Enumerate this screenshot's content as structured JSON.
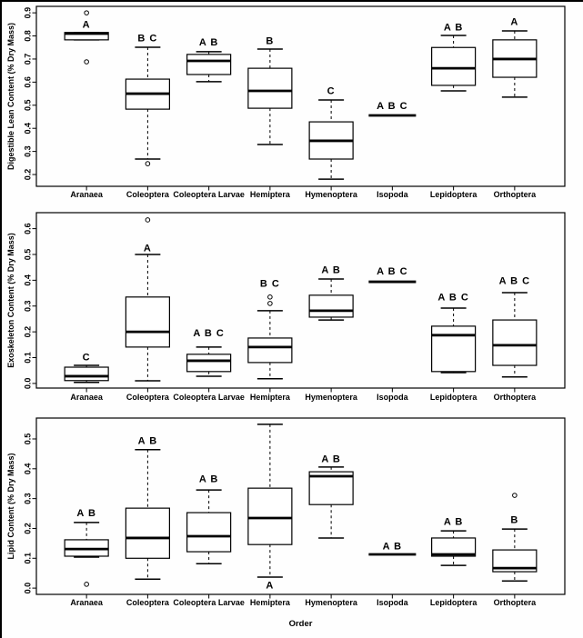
{
  "figure": {
    "title": "",
    "frame_color": "#000000",
    "background": "#fefefe",
    "line_color": "#000000",
    "box_fill": "#ffffff"
  },
  "chart_data": {
    "type": "boxplot",
    "categories": [
      "Aranaea",
      "Coleoptera",
      "Coleoptera Larvae",
      "Hemiptera",
      "Hymenoptera",
      "Isopoda",
      "Lepidoptera",
      "Orthoptera"
    ],
    "xlabel": "Order",
    "panels": [
      {
        "name": "digestible-lean",
        "ylabel": "Digestible Lean Content (% Dry Mass)",
        "ylim": [
          0.149,
          0.928
        ],
        "yticks": [
          0.2,
          0.3,
          0.4,
          0.5,
          0.6,
          0.7,
          0.8,
          0.9
        ],
        "boxes": [
          {
            "category": "Aranaea",
            "sig": "A",
            "sig_y": 0.85,
            "q1": 0.783,
            "median": 0.81,
            "q3": 0.815,
            "wlo": 0.783,
            "whi": 0.815,
            "outliers": [
              0.9,
              0.688
            ]
          },
          {
            "category": "Coleoptera",
            "sig": "B C",
            "sig_y": 0.79,
            "q1": 0.483,
            "median": 0.55,
            "q3": 0.613,
            "wlo": 0.267,
            "whi": 0.751,
            "outliers": [
              0.247
            ]
          },
          {
            "category": "Coleoptera Larvae",
            "sig": "A B",
            "sig_y": 0.772,
            "q1": 0.633,
            "median": 0.692,
            "q3": 0.72,
            "wlo": 0.602,
            "whi": 0.732,
            "outliers": []
          },
          {
            "category": "Hemiptera",
            "sig": "B",
            "sig_y": 0.779,
            "q1": 0.487,
            "median": 0.562,
            "q3": 0.66,
            "wlo": 0.33,
            "whi": 0.743,
            "outliers": []
          },
          {
            "category": "Hymenoptera",
            "sig": "C",
            "sig_y": 0.562,
            "q1": 0.267,
            "median": 0.346,
            "q3": 0.428,
            "wlo": 0.18,
            "whi": 0.523,
            "outliers": []
          },
          {
            "category": "Isopoda",
            "sig": "A B C",
            "sig_y": 0.497,
            "flat": 0.456
          },
          {
            "category": "Lepidoptera",
            "sig": "A B",
            "sig_y": 0.838,
            "q1": 0.586,
            "median": 0.66,
            "q3": 0.75,
            "wlo": 0.562,
            "whi": 0.802,
            "outliers": []
          },
          {
            "category": "Orthoptera",
            "sig": "A",
            "sig_y": 0.861,
            "q1": 0.621,
            "median": 0.7,
            "q3": 0.783,
            "wlo": 0.535,
            "whi": 0.822,
            "outliers": []
          }
        ]
      },
      {
        "name": "exoskeleton",
        "ylabel": "Exoskeleton Content (% Dry Mass)",
        "ylim": [
          -0.018,
          0.662
        ],
        "yticks": [
          0.0,
          0.1,
          0.2,
          0.3,
          0.4,
          0.5,
          0.6
        ],
        "boxes": [
          {
            "category": "Aranaea",
            "sig": "C",
            "sig_y": 0.102,
            "q1": 0.011,
            "median": 0.028,
            "q3": 0.063,
            "wlo": 0.004,
            "whi": 0.07,
            "outliers": []
          },
          {
            "category": "Coleoptera",
            "sig": "A",
            "sig_y": 0.525,
            "q1": 0.141,
            "median": 0.2,
            "q3": 0.335,
            "wlo": 0.01,
            "whi": 0.5,
            "outliers": [
              0.634
            ]
          },
          {
            "category": "Coleoptera Larvae",
            "sig": "A B C",
            "sig_y": 0.196,
            "q1": 0.046,
            "median": 0.088,
            "q3": 0.113,
            "wlo": 0.028,
            "whi": 0.141,
            "outliers": []
          },
          {
            "category": "Hemiptera",
            "sig": "B C",
            "sig_y": 0.387,
            "q1": 0.081,
            "median": 0.141,
            "q3": 0.176,
            "wlo": 0.018,
            "whi": 0.282,
            "outliers": [
              0.31,
              0.335
            ]
          },
          {
            "category": "Hymenoptera",
            "sig": "A B",
            "sig_y": 0.44,
            "q1": 0.257,
            "median": 0.282,
            "q3": 0.342,
            "wlo": 0.246,
            "whi": 0.405,
            "outliers": []
          },
          {
            "category": "Isopoda",
            "sig": "A B C",
            "sig_y": 0.435,
            "flat": 0.394
          },
          {
            "category": "Lepidoptera",
            "sig": "A B C",
            "sig_y": 0.335,
            "q1": 0.046,
            "median": 0.187,
            "q3": 0.222,
            "wlo": 0.042,
            "whi": 0.292,
            "outliers": []
          },
          {
            "category": "Orthoptera",
            "sig": "A B C",
            "sig_y": 0.398,
            "q1": 0.07,
            "median": 0.148,
            "q3": 0.246,
            "wlo": 0.025,
            "whi": 0.352,
            "outliers": []
          }
        ]
      },
      {
        "name": "lipid",
        "ylabel": "Lipid Content (% Dry Mass)",
        "ylim": [
          -0.021,
          0.57
        ],
        "yticks": [
          0.0,
          0.1,
          0.2,
          0.3,
          0.4,
          0.5
        ],
        "boxes": [
          {
            "category": "Aranaea",
            "sig": "A B",
            "sig_y": 0.252,
            "q1": 0.107,
            "median": 0.131,
            "q3": 0.162,
            "wlo": 0.104,
            "whi": 0.22,
            "outliers": [
              0.013
            ]
          },
          {
            "category": "Coleoptera",
            "sig": "A B",
            "sig_y": 0.494,
            "q1": 0.1,
            "median": 0.168,
            "q3": 0.268,
            "wlo": 0.03,
            "whi": 0.464,
            "outliers": []
          },
          {
            "category": "Coleoptera Larvae",
            "sig": "A B",
            "sig_y": 0.366,
            "q1": 0.122,
            "median": 0.174,
            "q3": 0.253,
            "wlo": 0.082,
            "whi": 0.329,
            "outliers": []
          },
          {
            "category": "Hemiptera",
            "sig": "A",
            "sig_y": 0.009,
            "q1": 0.146,
            "median": 0.235,
            "q3": 0.335,
            "wlo": 0.037,
            "whi": 0.549,
            "outliers": []
          },
          {
            "category": "Hymenoptera",
            "sig": "A B",
            "sig_y": 0.433,
            "q1": 0.28,
            "median": 0.375,
            "q3": 0.39,
            "wlo": 0.168,
            "whi": 0.406,
            "outliers": []
          },
          {
            "category": "Isopoda",
            "sig": "A B",
            "sig_y": 0.14,
            "flat": 0.113
          },
          {
            "category": "Lepidoptera",
            "sig": "A B",
            "sig_y": 0.222,
            "q1": 0.107,
            "median": 0.113,
            "q3": 0.168,
            "wlo": 0.076,
            "whi": 0.192,
            "outliers": []
          },
          {
            "category": "Orthoptera",
            "sig": "B",
            "sig_y": 0.229,
            "q1": 0.055,
            "median": 0.067,
            "q3": 0.128,
            "wlo": 0.024,
            "whi": 0.198,
            "outliers": [
              0.311
            ]
          }
        ]
      }
    ]
  }
}
